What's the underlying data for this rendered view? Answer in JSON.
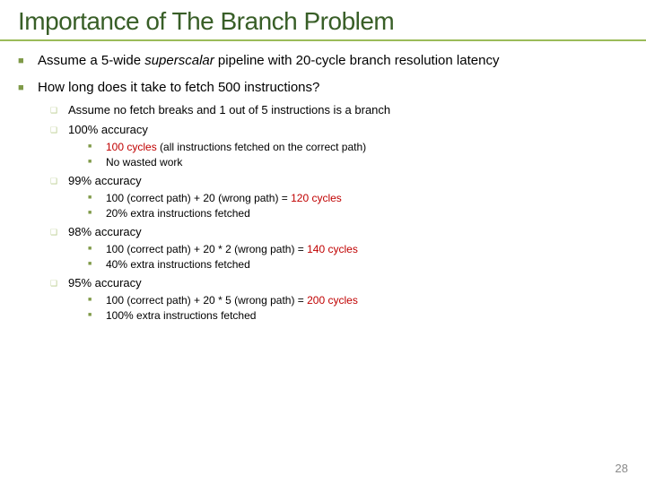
{
  "colors": {
    "title": "#385e27",
    "underline": "#9bbb59",
    "text": "#000000",
    "bullet_l1": "#7f9a48",
    "bullet_l2": "#b9cc8f",
    "bullet_l3": "#7f9a48",
    "highlight": "#c00000",
    "pagenum": "#898989"
  },
  "glyphs": {
    "l1": "■",
    "l2": "❑",
    "l3": "■"
  },
  "fontsize": {
    "title": 28,
    "l1": 15,
    "l2": 13,
    "l3": 12,
    "pagenum": 13
  },
  "title": "Importance of The Branch Problem",
  "page_number": "28",
  "b1": {
    "pre": "Assume a 5-wide ",
    "em": "superscalar",
    "post": " pipeline with 20-cycle branch resolution latency"
  },
  "b2": {
    "text": "How long does it take to fetch 500 instructions?",
    "s1": "Assume no fetch breaks and 1 out of 5 instructions is a branch",
    "s2": {
      "text": "100% accuracy",
      "a_pre": "100 cycles",
      "a_post": " (all instructions fetched on the correct path)",
      "b": "No wasted work"
    },
    "s3": {
      "text": "99% accuracy",
      "a_pre": "100 (correct path) + 20 (wrong path) = ",
      "a_hi": "120 cycles",
      "b": "20% extra instructions fetched"
    },
    "s4": {
      "text": "98% accuracy",
      "a_pre": "100 (correct path) + 20 * 2 (wrong path) = ",
      "a_hi": "140 cycles",
      "b": "40% extra instructions fetched"
    },
    "s5": {
      "text": "95% accuracy",
      "a_pre": "100 (correct path) + 20 * 5 (wrong path) = ",
      "a_hi": "200 cycles",
      "b": "100% extra instructions fetched"
    }
  }
}
